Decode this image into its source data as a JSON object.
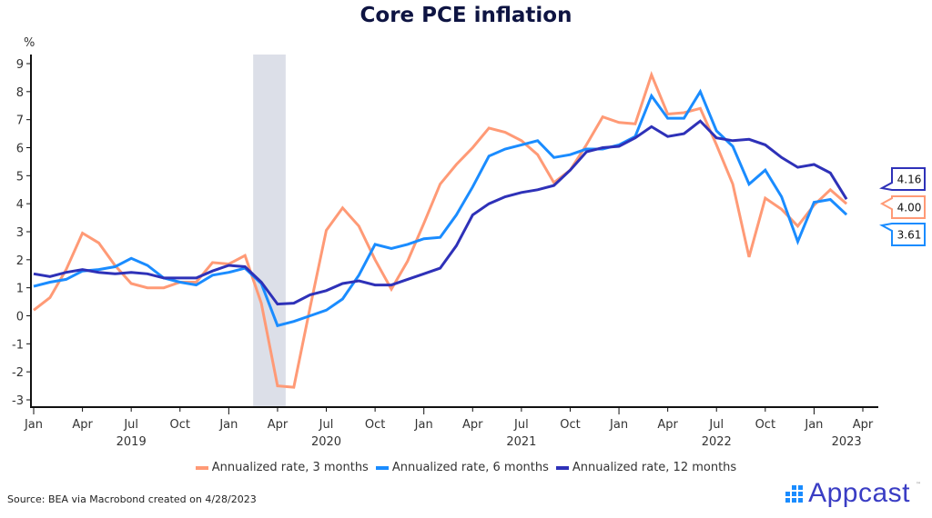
{
  "chart_data": {
    "type": "line",
    "title": "Core PCE inflation",
    "ylabel": "%",
    "xlabel": "",
    "ylim": [
      -3,
      9
    ],
    "yticks": [
      9,
      8,
      7,
      6,
      5,
      4,
      3,
      2,
      1,
      0,
      -1,
      -2,
      -3
    ],
    "x_start": "2019-01",
    "x_tick_labels": [
      "Jan",
      "Apr",
      "Jul",
      "Oct",
      "Jan",
      "Apr",
      "Jul",
      "Oct",
      "Jan",
      "Apr",
      "Jul",
      "Oct",
      "Jan",
      "Apr",
      "Jul",
      "Oct",
      "Jan",
      "Apr"
    ],
    "x_tick_months": [
      0,
      3,
      6,
      9,
      12,
      15,
      18,
      21,
      24,
      27,
      30,
      33,
      36,
      39,
      42,
      45,
      48,
      51
    ],
    "year_labels": [
      {
        "label": "2019",
        "month": 6
      },
      {
        "label": "2020",
        "month": 18
      },
      {
        "label": "2021",
        "month": 30
      },
      {
        "label": "2022",
        "month": 42
      },
      {
        "label": "2023",
        "month": 50
      }
    ],
    "shaded_region": {
      "start_month": 13.5,
      "end_month": 15.5,
      "color": "#dcdfe8",
      "label": "recession"
    },
    "series": [
      {
        "name": "Annualized rate, 3 months",
        "color": "#ff9a76",
        "end_label": "4.00",
        "values": [
          0.2,
          0.65,
          1.65,
          2.95,
          2.6,
          1.8,
          1.15,
          1.0,
          1.0,
          1.2,
          1.2,
          1.9,
          1.85,
          2.15,
          0.45,
          -2.5,
          -2.55,
          0.3,
          3.05,
          3.85,
          3.2,
          2.0,
          0.95,
          1.95,
          3.3,
          4.7,
          5.4,
          6.0,
          6.7,
          6.55,
          6.25,
          5.75,
          4.75,
          5.2,
          6.1,
          7.1,
          6.9,
          6.85,
          8.6,
          7.2,
          7.25,
          7.4,
          6.1,
          4.7,
          2.1,
          4.2,
          3.8,
          3.2,
          3.95,
          4.5,
          4.0
        ]
      },
      {
        "name": "Annualized rate, 6 months",
        "color": "#1a8cff",
        "end_label": "3.61",
        "values": [
          1.05,
          1.2,
          1.3,
          1.6,
          1.65,
          1.75,
          2.05,
          1.8,
          1.35,
          1.2,
          1.1,
          1.45,
          1.55,
          1.7,
          1.15,
          -0.35,
          -0.2,
          0.0,
          0.2,
          0.6,
          1.45,
          2.55,
          2.4,
          2.55,
          2.75,
          2.8,
          3.6,
          4.6,
          5.7,
          5.95,
          6.1,
          6.25,
          5.65,
          5.75,
          5.95,
          5.95,
          6.1,
          6.4,
          7.85,
          7.05,
          7.05,
          8.0,
          6.6,
          6.05,
          4.7,
          5.2,
          4.25,
          2.65,
          4.05,
          4.15,
          3.61
        ]
      },
      {
        "name": "Annualized rate, 12 months",
        "color": "#2e31b8",
        "end_label": "4.16",
        "values": [
          1.5,
          1.4,
          1.55,
          1.65,
          1.55,
          1.5,
          1.55,
          1.5,
          1.35,
          1.35,
          1.35,
          1.6,
          1.8,
          1.75,
          1.2,
          0.42,
          0.45,
          0.75,
          0.9,
          1.15,
          1.25,
          1.1,
          1.1,
          1.3,
          1.5,
          1.7,
          2.5,
          3.6,
          4.0,
          4.25,
          4.4,
          4.5,
          4.65,
          5.2,
          5.85,
          6.0,
          6.05,
          6.35,
          6.75,
          6.4,
          6.5,
          6.95,
          6.35,
          6.25,
          6.3,
          6.1,
          5.65,
          5.3,
          5.4,
          5.1,
          4.16
        ]
      }
    ],
    "legend_position": "bottom-center",
    "grid": false
  },
  "footer": {
    "source": "Source: BEA via Macrobond created on 4/28/2023",
    "logo_text": "Appcast",
    "logo_tm": "™"
  }
}
